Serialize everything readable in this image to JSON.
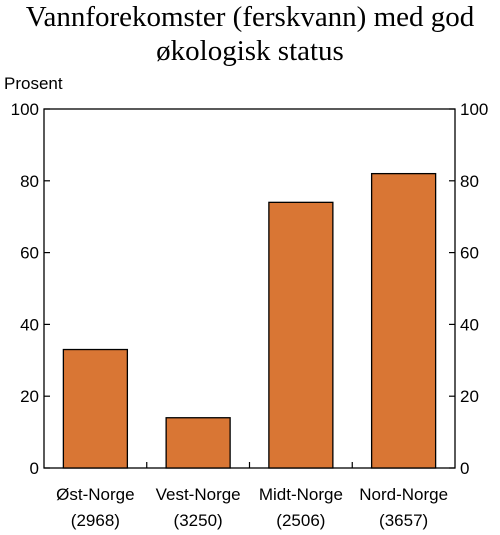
{
  "chart_data": {
    "type": "bar",
    "title_lines": [
      "Vannforekomster (ferskvann) med god",
      "økologisk status"
    ],
    "ylabel": "Prosent",
    "xlabel": "",
    "categories": [
      {
        "name": "Øst-Norge",
        "count": "(2968)"
      },
      {
        "name": "Vest-Norge",
        "count": "(3250)"
      },
      {
        "name": "Midt-Norge",
        "count": "(2506)"
      },
      {
        "name": "Nord-Norge",
        "count": "(3657)"
      }
    ],
    "values": [
      33,
      14,
      74,
      82
    ],
    "ylim": [
      0,
      100
    ],
    "yticks": [
      0,
      20,
      40,
      60,
      80,
      100
    ],
    "ytick_labels": [
      "0",
      "20",
      "40",
      "60",
      "80",
      "100"
    ],
    "secondary_y_axis": true,
    "grid": false,
    "legend": "none",
    "bar_color": "#D97634",
    "bar_edge_color": "#000000"
  }
}
